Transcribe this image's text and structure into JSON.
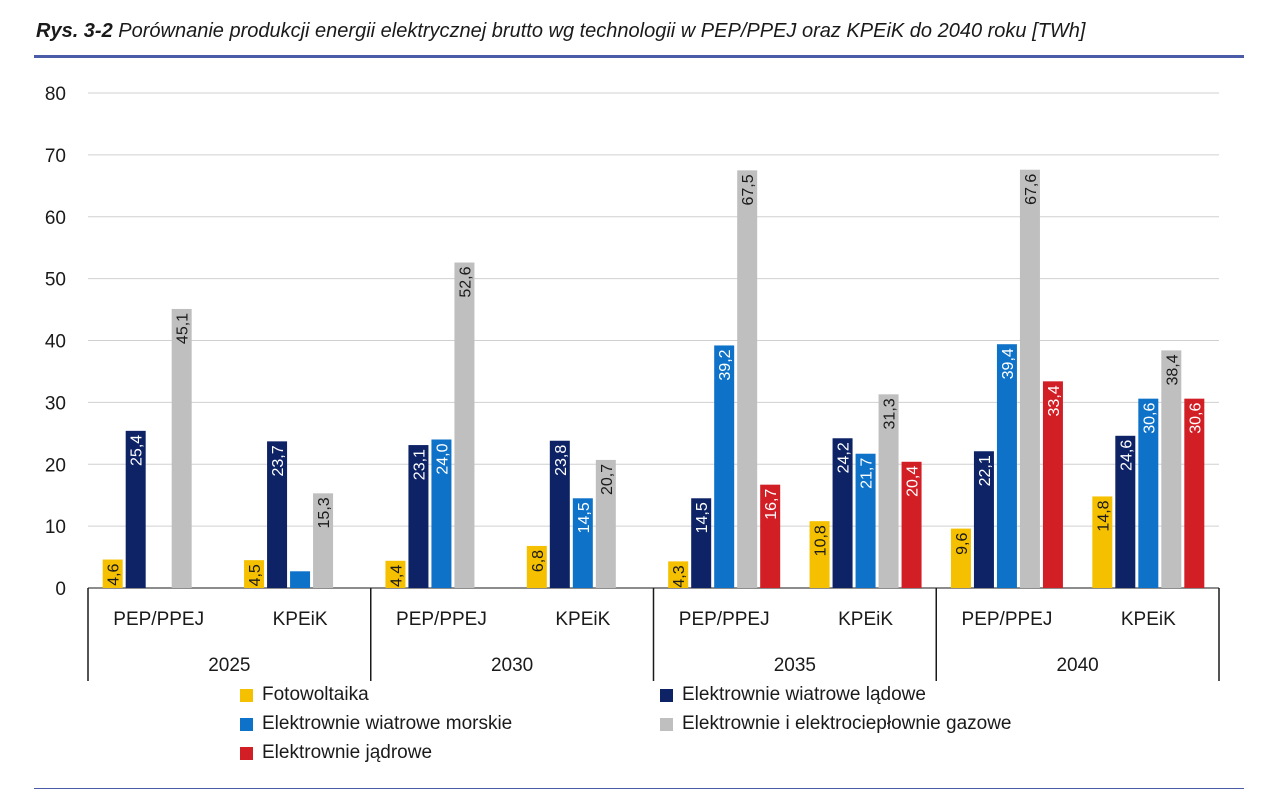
{
  "caption": {
    "number": "Rys. 3-2",
    "text": "Porównanie produkcji energii elektrycznej brutto wg technologii w PEP/PPEJ oraz KPEiK do 2040 roku [TWh]"
  },
  "chart_data": {
    "type": "bar",
    "title": "",
    "xlabel": "",
    "ylabel": "",
    "ylim": [
      0,
      80
    ],
    "yticks": [
      0,
      10,
      20,
      30,
      40,
      50,
      60,
      70,
      80
    ],
    "grid": true,
    "legend_position": "bottom",
    "groups": [
      "2025",
      "2030",
      "2035",
      "2040"
    ],
    "categories": [
      {
        "group": "2025",
        "label": "PEP/PPEJ"
      },
      {
        "group": "2025",
        "label": "KPEiK"
      },
      {
        "group": "2030",
        "label": "PEP/PPEJ"
      },
      {
        "group": "2030",
        "label": "KPEiK"
      },
      {
        "group": "2035",
        "label": "PEP/PPEJ"
      },
      {
        "group": "2035",
        "label": "KPEiK"
      },
      {
        "group": "2040",
        "label": "PEP/PPEJ"
      },
      {
        "group": "2040",
        "label": "KPEiK"
      }
    ],
    "series": [
      {
        "name": "Fotowoltaika",
        "color": "#f5c000",
        "values": [
          4.6,
          4.5,
          4.4,
          6.8,
          4.3,
          10.8,
          9.6,
          14.8
        ],
        "labels": [
          "4,6",
          "4,5",
          "4,4",
          "6,8",
          "4,3",
          "10,8",
          "9,6",
          "14,8"
        ]
      },
      {
        "name": "Elektrownie wiatrowe lądowe",
        "color": "#0d2366",
        "values": [
          25.4,
          23.7,
          23.1,
          23.8,
          14.5,
          24.2,
          22.1,
          24.6
        ],
        "labels": [
          "25,4",
          "23,7",
          "23,1",
          "23,8",
          "14,5",
          "24,2",
          "22,1",
          "24,6"
        ]
      },
      {
        "name": "Elektrownie wiatrowe morskie",
        "color": "#0f72c9",
        "values": [
          null,
          2.7,
          24.0,
          14.5,
          39.2,
          21.7,
          39.4,
          30.6
        ],
        "labels": [
          "",
          "",
          "24,0",
          "14,5",
          "39,2",
          "21,7",
          "39,4",
          "30,6"
        ]
      },
      {
        "name": "Elektrownie i elektrociepłownie gazowe",
        "color": "#bfbfbf",
        "values": [
          45.1,
          15.3,
          52.6,
          20.7,
          67.5,
          31.3,
          67.6,
          38.4
        ],
        "labels": [
          "45,1",
          "15,3",
          "52,6",
          "20,7",
          "67,5",
          "31,3",
          "67,6",
          "38,4"
        ]
      },
      {
        "name": "Elektrownie jądrowe",
        "color": "#d21f26",
        "values": [
          null,
          null,
          null,
          null,
          16.7,
          20.4,
          33.4,
          30.6
        ],
        "labels": [
          "",
          "",
          "",
          "",
          "16,7",
          "20,4",
          "33,4",
          "30,6"
        ]
      }
    ]
  }
}
